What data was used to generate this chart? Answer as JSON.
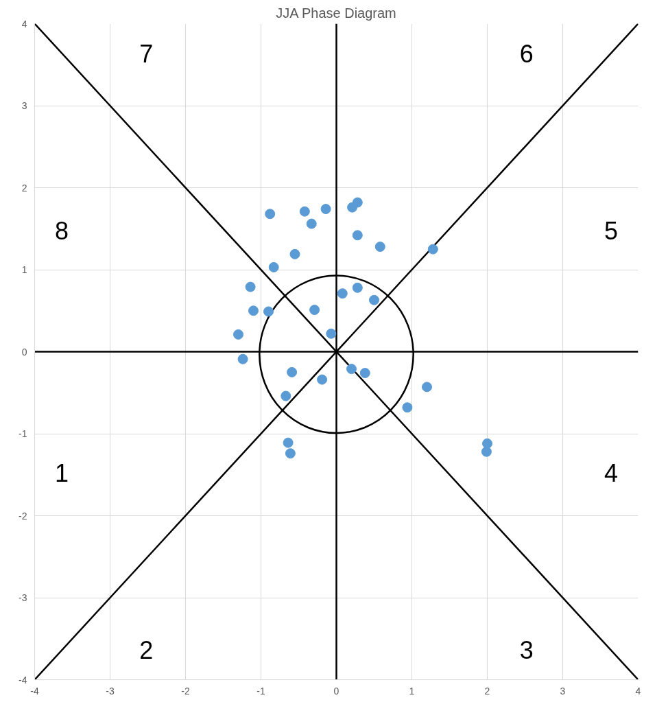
{
  "chart_data": {
    "type": "scatter",
    "title": "JJA Phase Diagram",
    "xlim": [
      -4,
      4
    ],
    "ylim": [
      -4,
      4
    ],
    "xticks": [
      -4,
      -3,
      -2,
      -1,
      0,
      1,
      2,
      3,
      4
    ],
    "yticks": [
      -4,
      -3,
      -2,
      -1,
      0,
      1,
      2,
      3,
      4
    ],
    "grid": true,
    "marker": "circle",
    "series": [
      {
        "type": "line",
        "marker": "none",
        "color": "#000000",
        "x": [
          -4,
          4
        ],
        "values": [
          -4,
          4
        ]
      },
      {
        "type": "line",
        "marker": "none",
        "color": "#000000",
        "x": [
          -4,
          4
        ],
        "values": [
          4,
          -4
        ]
      },
      {
        "type": "line",
        "marker": "none",
        "color": "#000000",
        "x": [
          0,
          0
        ],
        "values": [
          -4,
          4
        ]
      },
      {
        "type": "line",
        "marker": "none",
        "color": "#000000",
        "x": [
          -4,
          4
        ],
        "values": [
          0,
          0
        ]
      },
      {
        "color": "#5b9bd5",
        "x": [
          -0.88,
          -0.42,
          -0.14,
          0.21,
          0.28,
          -0.33,
          0.28,
          0.58,
          1.28,
          -0.55,
          -0.83,
          -1.14,
          -1.1,
          -0.9,
          0.08,
          0.28,
          0.5,
          -0.29,
          -0.07,
          -1.3,
          -1.24,
          -0.59,
          -0.19,
          -0.67,
          0.2,
          0.38,
          1.2,
          0.94,
          2.0,
          1.99,
          -0.64,
          -0.61
        ],
        "values": [
          1.68,
          1.71,
          1.74,
          1.76,
          1.82,
          1.56,
          1.42,
          1.28,
          1.25,
          1.19,
          1.03,
          0.79,
          0.5,
          0.49,
          0.71,
          0.78,
          0.63,
          0.51,
          0.22,
          0.21,
          -0.09,
          -0.25,
          -0.34,
          -0.54,
          -0.21,
          -0.26,
          -0.43,
          -0.68,
          -1.12,
          -1.22,
          -1.11,
          -1.24
        ]
      }
    ],
    "annotations": [
      "1",
      "2",
      "3",
      "4",
      "5",
      "6",
      "7",
      "8"
    ]
  }
}
